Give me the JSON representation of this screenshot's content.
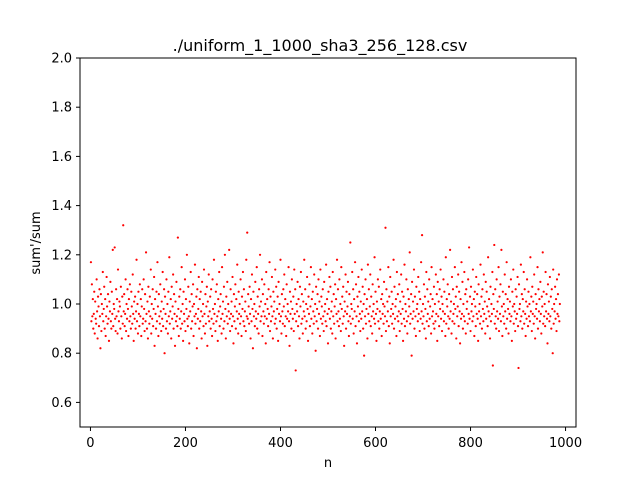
{
  "chart_data": {
    "type": "scatter",
    "title": "./uniform_1_1000_sha3_256_128.csv",
    "xlabel": "n",
    "ylabel": "sum'/sum",
    "xlim": [
      -22,
      1022
    ],
    "ylim": [
      0.5,
      2.0
    ],
    "xticks": [
      0,
      200,
      400,
      600,
      800,
      1000
    ],
    "xtick_labels": [
      "0",
      "200",
      "400",
      "600",
      "800",
      "1000"
    ],
    "yticks": [
      0.6,
      0.8,
      1.0,
      1.2,
      1.4,
      1.6,
      1.8,
      2.0
    ],
    "ytick_labels": [
      "0.6",
      "0.8",
      "1.0",
      "1.2",
      "1.4",
      "1.6",
      "1.8",
      "2.0"
    ],
    "grid": false,
    "marker_color": "#ff0000",
    "n_points": 1000,
    "series": [
      {
        "x_start": 1,
        "x_step": 1,
        "y": [
          1.17,
          0.93,
          1.08,
          0.95,
          1.02,
          0.9,
          0.96,
          1.05,
          0.88,
          1.01,
          0.94,
          0.92,
          1.1,
          0.97,
          0.86,
          1.03,
          0.99,
          0.91,
          1.06,
          0.95,
          0.82,
          1.04,
          0.89,
          1.0,
          0.96,
          1.13,
          0.93,
          0.98,
          1.07,
          0.9,
          1.02,
          0.87,
          0.95,
          1.11,
          0.99,
          0.92,
          1.04,
          0.94,
          0.85,
          1.01,
          0.97,
          1.09,
          0.93,
          0.9,
          1.05,
          0.96,
          1.22,
          0.91,
          1.0,
          0.98,
          1.23,
          0.94,
          0.89,
          1.06,
          0.95,
          1.02,
          0.88,
          1.14,
          0.97,
          0.93,
          1.01,
          0.99,
          0.9,
          1.07,
          0.95,
          0.86,
          1.03,
          0.92,
          1.32,
          0.97,
          1.04,
          0.91,
          0.96,
          1.1,
          0.89,
          1.0,
          0.94,
          1.06,
          0.98,
          0.87,
          1.02,
          0.93,
          1.08,
          0.95,
          0.9,
          1.05,
          0.99,
          0.92,
          1.12,
          0.96,
          0.85,
          1.01,
          0.94,
          1.03,
          0.9,
          0.97,
          1.18,
          0.93,
          1.0,
          0.88,
          1.05,
          0.96,
          0.91,
          1.08,
          0.95,
          1.02,
          0.87,
          0.99,
          1.06,
          0.92,
          0.94,
          1.1,
          0.98,
          0.89,
          1.04,
          0.93,
          1.21,
          0.96,
          0.9,
          1.01,
          0.86,
          1.07,
          0.97,
          0.92,
          1.03,
          0.95,
          1.14,
          0.88,
          1.0,
          0.94,
          1.06,
          0.91,
          0.98,
          1.11,
          0.83,
          1.02,
          0.96,
          0.9,
          1.05,
          0.93,
          1.17,
          0.99,
          0.87,
          1.04,
          0.95,
          0.92,
          1.08,
          0.97,
          0.89,
          1.01,
          0.94,
          1.13,
          0.91,
          0.98,
          1.06,
          0.8,
          1.03,
          0.96,
          0.9,
          1.1,
          0.93,
          1.0,
          0.88,
          1.05,
          0.95,
          1.19,
          0.92,
          0.97,
          1.02,
          0.86,
          1.07,
          0.94,
          0.99,
          1.12,
          0.9,
          1.04,
          0.96,
          0.83,
          1.01,
          0.93,
          1.09,
          0.95,
          0.91,
          1.27,
          0.98,
          0.87,
          1.03,
          0.94,
          1.06,
          0.9,
          0.97,
          1.15,
          0.92,
          1.0,
          0.85,
          1.05,
          0.96,
          0.93,
          1.1,
          0.89,
          1.02,
          0.98,
          1.2,
          0.94,
          0.91,
          1.07,
          0.95,
          0.84,
          1.01,
          0.97,
          1.13,
          0.9,
          1.04,
          0.93,
          0.99,
          1.08,
          0.87,
          1.0,
          0.95,
          1.16,
          0.92,
          0.96,
          1.03,
          0.82,
          1.06,
          0.94,
          0.98,
          1.11,
          0.9,
          1.02,
          0.93,
          1.05,
          0.97,
          0.86,
          1.09,
          0.95,
          1.0,
          0.91,
          1.14,
          0.96,
          0.88,
          1.04,
          0.92,
          0.99,
          1.07,
          0.83,
          1.01,
          0.95,
          1.12,
          0.93,
          0.97,
          1.03,
          0.9,
          1.06,
          0.94,
          0.87,
          1.1,
          0.98,
          0.92,
          1.18,
          0.96,
          1.0,
          0.89,
          1.05,
          0.93,
          1.08,
          0.95,
          0.85,
          1.02,
          0.97,
          1.13,
          0.91,
          0.99,
          1.04,
          0.94,
          0.88,
          1.15,
          0.96,
          1.01,
          0.9,
          1.07,
          0.93,
          1.2,
          0.98,
          0.86,
          1.03,
          0.95,
          1.09,
          0.92,
          1.0,
          0.97,
          1.22,
          0.94,
          0.89,
          1.06,
          0.96,
          1.01,
          0.91,
          1.11,
          0.95,
          0.84,
          1.04,
          0.93,
          0.99,
          1.08,
          0.9,
          1.02,
          0.97,
          1.16,
          0.94,
          0.88,
          1.05,
          0.96,
          1.0,
          0.92,
          1.1,
          0.95,
          0.87,
          1.03,
          0.98,
          1.13,
          0.93,
          1.06,
          0.91,
          0.97,
          1.01,
          0.89,
          1.18,
          0.95,
          1.29,
          0.94,
          1.04,
          0.99,
          0.92,
          1.07,
          0.96,
          0.86,
          1.02,
          0.93,
          1.12,
          0.98,
          0.82,
          1.05,
          0.95,
          1.0,
          0.91,
          1.09,
          0.97,
          0.94,
          1.15,
          0.9,
          1.03,
          0.96,
          0.88,
          1.06,
          0.99,
          1.2,
          0.93,
          1.01,
          0.95,
          1.1,
          0.87,
          1.04,
          0.97,
          0.92,
          1.08,
          0.95,
          1.0,
          0.84,
          1.13,
          0.94,
          1.02,
          0.98,
          0.91,
          1.06,
          0.96,
          1.17,
          0.89,
          1.03,
          0.93,
          0.99,
          1.11,
          0.95,
          0.86,
          1.05,
          0.97,
          1.01,
          0.92,
          1.14,
          0.94,
          1.07,
          0.9,
          0.98,
          1.03,
          0.85,
          1.09,
          0.96,
          1.0,
          0.93,
          1.18,
          0.95,
          0.88,
          1.04,
          0.97,
          0.92,
          1.06,
          0.99,
          1.12,
          0.91,
          1.02,
          0.95,
          0.87,
          1.08,
          0.94,
          1.0,
          0.97,
          1.15,
          0.93,
          0.83,
          1.05,
          0.96,
          1.01,
          0.9,
          1.1,
          0.98,
          0.94,
          1.03,
          0.89,
          1.14,
          0.96,
          1.06,
          0.73,
          0.93,
          1.0,
          0.97,
          1.09,
          0.91,
          1.02,
          0.95,
          0.86,
          1.07,
          0.99,
          1.13,
          0.92,
          1.04,
          0.94,
          0.88,
          1.01,
          0.97,
          1.18,
          0.95,
          1.06,
          0.9,
          1.0,
          0.93,
          1.11,
          0.98,
          0.85,
          1.03,
          0.96,
          1.08,
          0.91,
          0.99,
          1.15,
          0.94,
          1.02,
          0.88,
          1.05,
          0.97,
          0.92,
          1.12,
          0.95,
          1.0,
          0.81,
          1.07,
          0.93,
          0.98,
          1.04,
          0.9,
          1.1,
          0.96,
          1.01,
          0.87,
          1.14,
          0.94,
          1.03,
          0.99,
          0.92,
          1.06,
          0.95,
          0.89,
          1.09,
          0.97,
          1.0,
          0.93,
          1.16,
          0.91,
          1.02,
          0.96,
          0.84,
          1.05,
          0.98,
          1.11,
          0.94,
          1.07,
          0.9,
          0.97,
          1.01,
          0.88,
          1.13,
          0.95,
          1.04,
          0.92,
          0.99,
          1.08,
          0.86,
          1.02,
          0.96,
          1.18,
          0.93,
          1.06,
          0.97,
          0.91,
          1.1,
          0.94,
          1.0,
          0.89,
          1.15,
          0.98,
          1.03,
          0.92,
          1.07,
          0.95,
          0.83,
          1.01,
          0.97,
          1.12,
          0.9,
          1.05,
          0.96,
          0.99,
          1.09,
          0.93,
          0.87,
          1.04,
          0.95,
          1.25,
          0.92,
          1.0,
          0.98,
          1.13,
          0.94,
          1.06,
          0.88,
          1.02,
          0.97,
          1.17,
          0.91,
          1.08,
          0.95,
          0.84,
          1.03,
          0.99,
          1.11,
          0.93,
          1.05,
          0.96,
          0.89,
          1.01,
          0.94,
          1.14,
          0.97,
          1.07,
          0.9,
          1.0,
          0.79,
          1.04,
          0.95,
          1.1,
          0.92,
          0.98,
          1.02,
          0.86,
          1.16,
          0.96,
          1.06,
          0.93,
          0.99,
          1.12,
          0.91,
          1.03,
          0.95,
          0.88,
          1.08,
          0.97,
          1.0,
          0.94,
          1.19,
          0.92,
          1.05,
          0.96,
          0.85,
          1.01,
          0.98,
          1.1,
          0.93,
          1.07,
          0.9,
          0.97,
          1.14,
          0.94,
          1.02,
          0.87,
          1.04,
          0.96,
          1.0,
          0.92,
          1.09,
          0.99,
          0.95,
          1.31,
          0.89,
          1.06,
          0.93,
          1.01,
          0.97,
          1.15,
          0.91,
          1.03,
          0.84,
          1.11,
          0.95,
          0.98,
          1.05,
          0.92,
          1.0,
          0.96,
          1.18,
          0.9,
          1.07,
          0.94,
          0.99,
          1.02,
          0.87,
          1.13,
          0.95,
          1.04,
          0.93,
          0.97,
          1.08,
          0.89,
          1.01,
          0.96,
          1.12,
          0.92,
          1.05,
          0.98,
          0.85,
          1.03,
          0.94,
          1.16,
          0.91,
          1.0,
          0.97,
          1.1,
          0.93,
          0.88,
          1.06,
          0.95,
          1.02,
          0.99,
          1.21,
          0.92,
          0.96,
          1.04,
          0.79,
          1.09,
          0.94,
          1.01,
          0.97,
          1.14,
          0.9,
          1.03,
          0.95,
          0.87,
          1.07,
          0.98,
          1.0,
          0.93,
          1.11,
          0.96,
          1.05,
          0.89,
          1.02,
          0.94,
          1.17,
          0.97,
          1.28,
          0.92,
          1.0,
          0.95,
          1.08,
          0.9,
          1.03,
          0.98,
          0.86,
          1.13,
          0.93,
          1.06,
          0.96,
          1.01,
          0.91,
          1.1,
          0.94,
          0.99,
          1.04,
          0.88,
          1.15,
          0.95,
          1.02,
          0.97,
          0.92,
          1.07,
          0.9,
          1.0,
          0.93,
          1.12,
          0.96,
          1.04,
          0.85,
          1.09,
          0.95,
          1.01,
          0.91,
          1.06,
          0.98,
          1.14,
          0.94,
          1.03,
          0.89,
          1.0,
          0.97,
          1.1,
          0.93,
          1.05,
          0.96,
          0.87,
          1.19,
          0.92,
          1.02,
          0.99,
          1.08,
          0.95,
          0.9,
          1.04,
          0.94,
          1.22,
          0.97,
          1.01,
          0.88,
          1.11,
          0.93,
          1.06,
          0.96,
          1.0,
          0.92,
          1.15,
          0.98,
          1.03,
          0.86,
          1.07,
          0.95,
          0.99,
          1.12,
          0.91,
          1.05,
          0.97,
          0.84,
          1.02,
          0.94,
          1.17,
          0.96,
          1.09,
          0.9,
          1.0,
          0.95,
          1.13,
          0.93,
          1.04,
          0.88,
          1.06,
          0.98,
          1.01,
          0.92,
          1.1,
          0.96,
          1.23,
          0.94,
          1.03,
          0.89,
          1.07,
          0.97,
          1.0,
          0.93,
          1.14,
          0.95,
          1.02,
          0.87,
          1.05,
          0.99,
          0.91,
          1.11,
          0.96,
          1.04,
          0.94,
          0.85,
          1.08,
          0.97,
          1.0,
          0.92,
          1.16,
          0.95,
          1.03,
          0.9,
          1.06,
          0.98,
          0.93,
          1.12,
          0.96,
          1.01,
          0.88,
          1.09,
          0.94,
          1.05,
          0.99,
          0.91,
          1.19,
          0.97,
          1.02,
          0.95,
          0.86,
          1.07,
          0.93,
          1.0,
          0.96,
          1.13,
          0.75,
          1.04,
          0.98,
          1.24,
          0.92,
          1.06,
          0.95,
          0.9,
          1.1,
          0.97,
          1.01,
          0.94,
          1.15,
          0.89,
          1.03,
          0.96,
          1.08,
          0.93,
          1.22,
          0.99,
          0.87,
          1.05,
          0.95,
          1.0,
          0.92,
          1.12,
          0.97,
          1.04,
          0.9,
          1.17,
          0.94,
          1.02,
          0.98,
          0.88,
          1.07,
          0.96,
          1.01,
          0.93,
          1.1,
          0.95,
          0.85,
          1.05,
          0.99,
          1.14,
          0.92,
          1.0,
          0.97,
          0.89,
          1.06,
          0.94,
          1.03,
          0.96,
          1.11,
          0.91,
          0.74,
          1.08,
          0.98,
          1.0,
          0.93,
          1.16,
          0.95,
          1.04,
          0.9,
          1.02,
          0.97,
          1.13,
          0.92,
          1.06,
          0.96,
          0.87,
          1.01,
          0.94,
          1.1,
          0.99,
          0.91,
          1.05,
          0.95,
          1.0,
          0.93,
          1.19,
          0.97,
          1.03,
          0.89,
          1.07,
          0.96,
          1.01,
          0.92,
          1.12,
          0.95,
          0.86,
          1.04,
          0.98,
          1.0,
          0.94,
          1.15,
          0.9,
          1.06,
          0.97,
          1.02,
          0.93,
          1.09,
          0.96,
          0.88,
          1.03,
          0.99,
          1.21,
          0.92,
          1.05,
          0.95,
          1.0,
          0.91,
          1.13,
          0.97,
          1.04,
          0.94,
          0.84,
          1.08,
          0.96,
          1.01,
          0.93,
          1.11,
          0.95,
          1.03,
          0.9,
          1.06,
          0.98,
          0.8,
          1.14,
          0.92,
          1.0,
          0.97,
          1.07,
          0.94,
          1.02,
          0.89,
          1.1,
          0.96,
          1.04,
          0.95,
          1.12,
          0.93,
          1.0
        ]
      }
    ]
  }
}
